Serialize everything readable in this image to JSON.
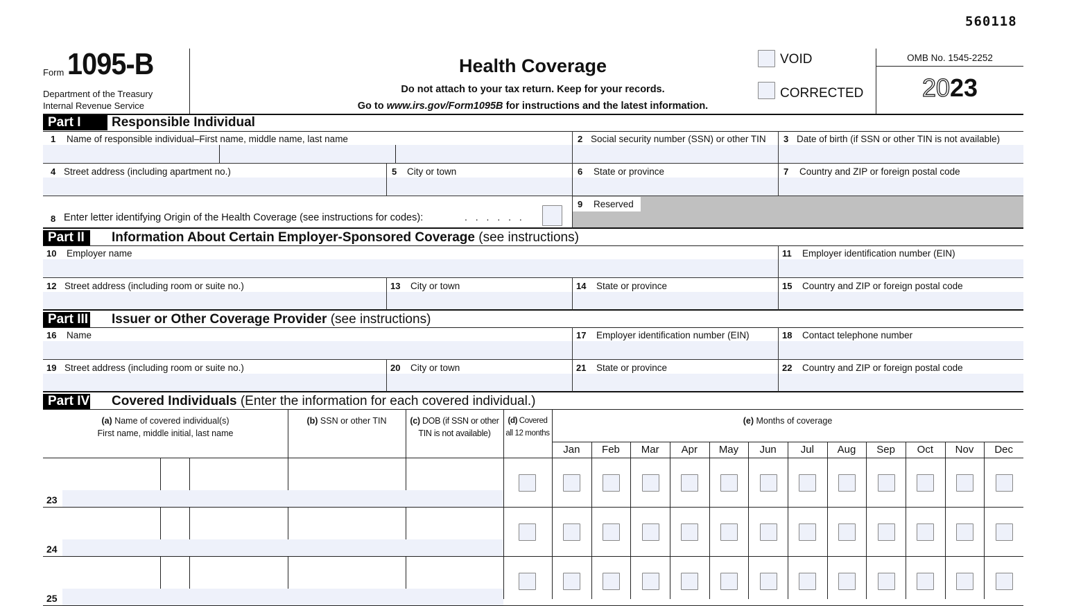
{
  "page_code": "560118",
  "header": {
    "form_word": "Form",
    "form_number": "1095-B",
    "dept_line1": "Department of the Treasury",
    "dept_line2": "Internal Revenue Service",
    "title": "Health Coverage",
    "subtitle1": "Do not attach to your tax return. Keep for your records.",
    "subtitle2_pre": "Go to ",
    "subtitle2_url": "www.irs.gov/Form1095B",
    "subtitle2_post": " for instructions and the latest information.",
    "void_label": "VOID",
    "corrected_label": "CORRECTED",
    "omb": "OMB No. 1545-2252",
    "year_outline": "20",
    "year_bold": "23"
  },
  "part1": {
    "tag": "Part I",
    "title": "Responsible Individual",
    "fields": [
      {
        "num": "1",
        "label": "Name of responsible individual–First name, middle name, last name"
      },
      {
        "num": "2",
        "label": "Social security number (SSN) or other TIN"
      },
      {
        "num": "3",
        "label": "Date of birth (if SSN or other TIN is not available)"
      },
      {
        "num": "4",
        "label": "Street address (including apartment no.)"
      },
      {
        "num": "5",
        "label": "City or town"
      },
      {
        "num": "6",
        "label": "State or province"
      },
      {
        "num": "7",
        "label": "Country and ZIP or foreign postal code"
      },
      {
        "num": "8",
        "label": "Enter letter identifying Origin of the Health Coverage (see instructions for codes):",
        "leader": ". . . . . ."
      },
      {
        "num": "9",
        "label": "Reserved"
      }
    ]
  },
  "part2": {
    "tag": "Part II",
    "title": "Information About Certain Employer-Sponsored Coverage",
    "note": "(see instructions)",
    "fields": [
      {
        "num": "10",
        "label": "Employer name"
      },
      {
        "num": "11",
        "label": "Employer identification number (EIN)"
      },
      {
        "num": "12",
        "label": "Street address (including room or suite no.)"
      },
      {
        "num": "13",
        "label": "City or town"
      },
      {
        "num": "14",
        "label": "State or province"
      },
      {
        "num": "15",
        "label": "Country and ZIP or foreign postal code"
      }
    ]
  },
  "part3": {
    "tag": "Part III",
    "title": "Issuer or Other Coverage Provider",
    "note": "(see instructions)",
    "fields": [
      {
        "num": "16",
        "label": "Name"
      },
      {
        "num": "17",
        "label": "Employer identification number (EIN)"
      },
      {
        "num": "18",
        "label": "Contact telephone number"
      },
      {
        "num": "19",
        "label": "Street address (including room or suite no.)"
      },
      {
        "num": "20",
        "label": "City or town"
      },
      {
        "num": "21",
        "label": "State or province"
      },
      {
        "num": "22",
        "label": "Country and ZIP or foreign postal code"
      }
    ]
  },
  "part4": {
    "tag": "Part IV",
    "title": "Covered Individuals",
    "note": "(Enter the information for each covered individual.)",
    "col_a_letter": "(a)",
    "col_a_line1": "Name of covered individual(s)",
    "col_a_line2": "First name, middle initial, last name",
    "col_b_letter": "(b)",
    "col_b": "SSN or other TIN",
    "col_c_letter": "(c)",
    "col_c_line1": "DOB (if SSN or other",
    "col_c_line2": "TIN is not available)",
    "col_d_letter": "(d)",
    "col_d_line1": "Covered",
    "col_d_line2": "all 12 months",
    "col_e_letter": "(e)",
    "col_e": "Months of coverage",
    "months": [
      "Jan",
      "Feb",
      "Mar",
      "Apr",
      "May",
      "Jun",
      "Jul",
      "Aug",
      "Sep",
      "Oct",
      "Nov",
      "Dec"
    ],
    "rows": [
      {
        "num": "23"
      },
      {
        "num": "24"
      },
      {
        "num": "25"
      }
    ]
  },
  "colors": {
    "field_fill": "#eef1fa",
    "reserved_fill": "#c0c0c0"
  }
}
